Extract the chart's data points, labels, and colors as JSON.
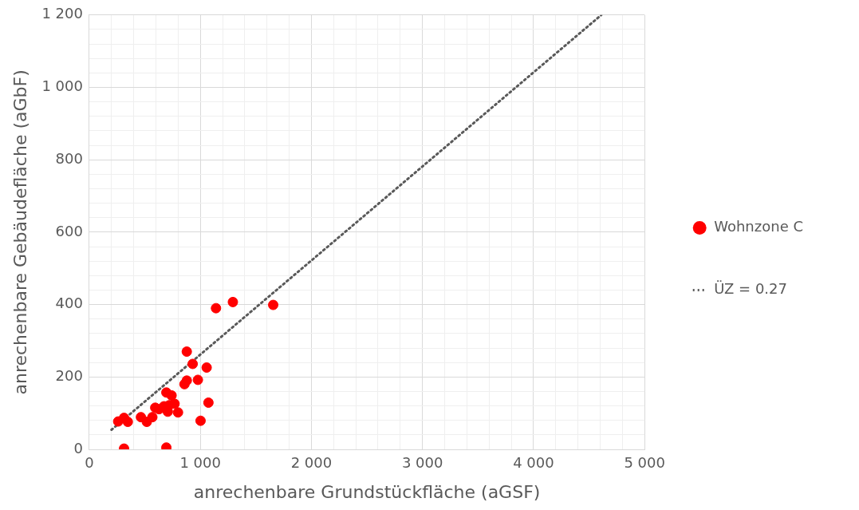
{
  "chart_data": {
    "type": "scatter",
    "xlabel": "anrechenbare Grundstückfläche (aGSF)",
    "ylabel": "anrechenbare Gebäudefläche (aGbF)",
    "series": [
      {
        "name": "Wohnzone C",
        "color": "#ff0000",
        "marker": "circle",
        "x": [
          313,
          694,
          260,
          313,
          347,
          465,
          518,
          568,
          594,
          628,
          673,
          707,
          720,
          768,
          799,
          694,
          741,
          857,
          878,
          978,
          931,
          1057,
          878,
          1073,
          1002,
          1141,
          1293,
          1656
        ],
        "values": [
          2,
          5,
          77,
          87,
          76,
          89,
          76,
          89,
          115,
          111,
          119,
          104,
          122,
          126,
          102,
          157,
          149,
          180,
          190,
          192,
          236,
          226,
          270,
          129,
          79,
          390,
          407,
          399
        ]
      },
      {
        "name": "ÜZ = 0.27",
        "type": "line",
        "color": "#595959",
        "marker": "none",
        "line_style": "dotted",
        "x": [
          200,
          4610
        ],
        "values": [
          54,
          1200
        ]
      }
    ],
    "xlim": [
      0,
      5000
    ],
    "xticks": [
      0,
      {
        "value": 200,
        "label": null
      },
      {
        "value": 400,
        "label": null
      },
      {
        "value": 600,
        "label": null
      },
      {
        "value": 800,
        "label": null
      },
      {
        "value": 1000,
        "label": "1 000"
      },
      {
        "value": 1200,
        "label": null
      },
      {
        "value": 1400,
        "label": null
      },
      {
        "value": 1600,
        "label": null
      },
      {
        "value": 1800,
        "label": null
      },
      {
        "value": 2000,
        "label": "2 000"
      },
      {
        "value": 2200,
        "label": null
      },
      {
        "value": 2400,
        "label": null
      },
      {
        "value": 2600,
        "label": null
      },
      {
        "value": 2800,
        "label": null
      },
      {
        "value": 3000,
        "label": "3 000"
      },
      {
        "value": 3200,
        "label": null
      },
      {
        "value": 3400,
        "label": null
      },
      {
        "value": 3600,
        "label": null
      },
      {
        "value": 3800,
        "label": null
      },
      {
        "value": 4000,
        "label": "4 000"
      },
      {
        "value": 4200,
        "label": null
      },
      {
        "value": 4400,
        "label": null
      },
      {
        "value": 4600,
        "label": null
      },
      {
        "value": 4800,
        "label": null
      },
      {
        "value": 5000,
        "label": "5 000"
      }
    ],
    "ylim": [
      0,
      1200
    ],
    "yticks": [
      0,
      {
        "value": 40,
        "label": null
      },
      {
        "value": 80,
        "label": null
      },
      {
        "value": 120,
        "label": null
      },
      {
        "value": 160,
        "label": null
      },
      200,
      {
        "value": 240,
        "label": null
      },
      {
        "value": 280,
        "label": null
      },
      {
        "value": 320,
        "label": null
      },
      {
        "value": 360,
        "label": null
      },
      400,
      {
        "value": 440,
        "label": null
      },
      {
        "value": 480,
        "label": null
      },
      {
        "value": 520,
        "label": null
      },
      {
        "value": 560,
        "label": null
      },
      600,
      {
        "value": 640,
        "label": null
      },
      {
        "value": 680,
        "label": null
      },
      {
        "value": 720,
        "label": null
      },
      {
        "value": 760,
        "label": null
      },
      800,
      {
        "value": 840,
        "label": null
      },
      {
        "value": 880,
        "label": null
      },
      {
        "value": 920,
        "label": null
      },
      {
        "value": 960,
        "label": null
      },
      {
        "value": 1000,
        "label": "1 000"
      },
      {
        "value": 1040,
        "label": null
      },
      {
        "value": 1080,
        "label": null
      },
      {
        "value": 1120,
        "label": null
      },
      {
        "value": 1160,
        "label": null
      },
      {
        "value": 1200,
        "label": "1 200"
      }
    ],
    "grid": true,
    "legend": "right"
  }
}
